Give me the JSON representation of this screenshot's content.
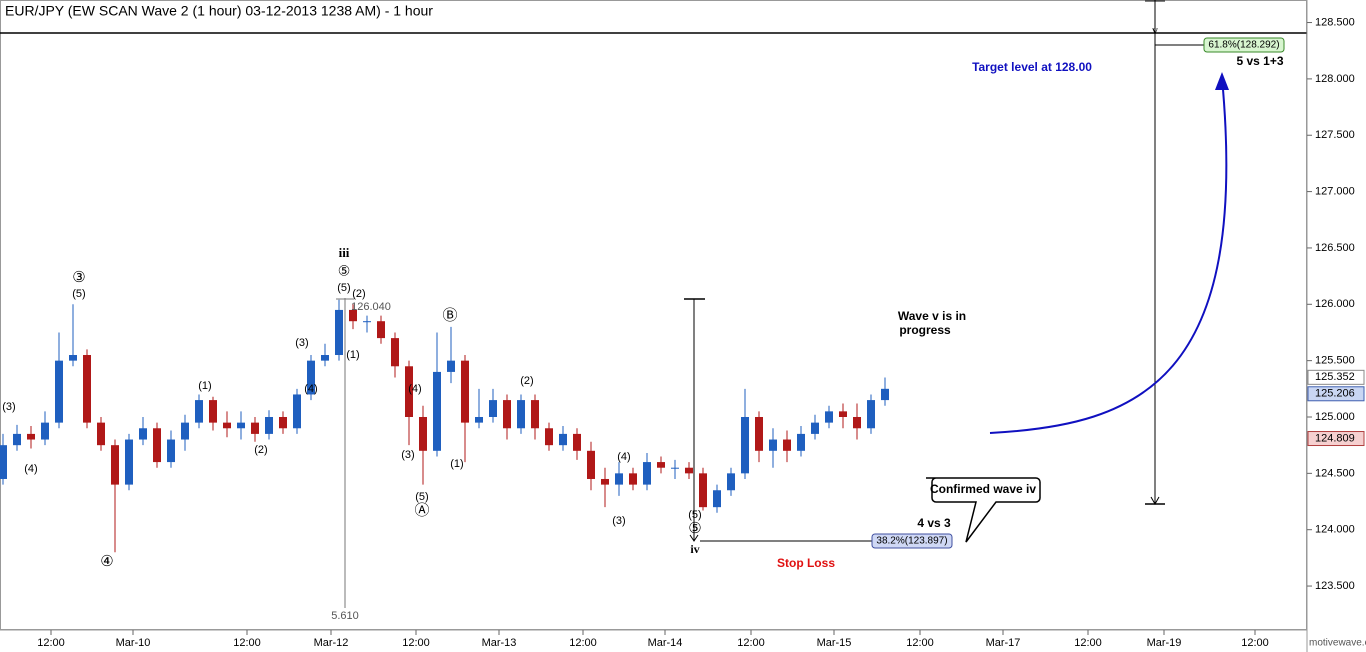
{
  "chart_data": {
    "type": "candlestick",
    "title": "EUR/JPY (EW SCAN Wave 2 (1 hour) 03-12-2013 1238 AM) - 1 hour",
    "up_color": "#1f5fbf",
    "down_color": "#b01818",
    "open": [
      124.45,
      124.75,
      124.85,
      124.8,
      124.95,
      125.5,
      125.55,
      124.95,
      124.75,
      124.4,
      124.8,
      124.9,
      124.6,
      124.8,
      124.95,
      125.15,
      124.95,
      124.9,
      124.95,
      124.85,
      125.0,
      124.9,
      125.2,
      125.5,
      125.55,
      125.95,
      125.85,
      125.85,
      125.7,
      125.45,
      125.0,
      124.7,
      125.4,
      125.5,
      124.95,
      125.0,
      125.15,
      124.9,
      125.15,
      124.9,
      124.75,
      124.85,
      124.7,
      124.45,
      124.4,
      124.5,
      124.4,
      124.6,
      124.55,
      124.55,
      124.5,
      124.2,
      124.35,
      124.5,
      125.0,
      124.7,
      124.8,
      124.7,
      124.85,
      124.95,
      125.05,
      125.0,
      124.9,
      125.15
    ],
    "high": [
      124.85,
      124.93,
      124.92,
      125.05,
      125.75,
      126.0,
      125.6,
      125.0,
      124.8,
      124.85,
      125.0,
      124.95,
      124.88,
      125.02,
      125.2,
      125.18,
      125.05,
      125.05,
      125.0,
      125.06,
      125.05,
      125.25,
      125.55,
      125.65,
      126.04,
      126.0,
      125.9,
      125.9,
      125.75,
      125.5,
      125.1,
      125.75,
      125.8,
      125.55,
      125.25,
      125.25,
      125.2,
      125.2,
      125.2,
      124.95,
      124.92,
      124.9,
      124.78,
      124.55,
      124.6,
      124.55,
      124.68,
      124.65,
      124.62,
      124.6,
      124.55,
      124.4,
      124.55,
      125.25,
      125.05,
      124.9,
      124.88,
      124.92,
      125.02,
      125.1,
      125.12,
      125.12,
      125.2,
      125.35
    ],
    "low": [
      124.4,
      124.7,
      124.72,
      124.75,
      124.9,
      125.45,
      124.9,
      124.7,
      123.8,
      124.35,
      124.75,
      124.55,
      124.55,
      124.7,
      124.9,
      124.88,
      124.82,
      124.8,
      124.78,
      124.8,
      124.85,
      124.85,
      125.15,
      125.45,
      125.5,
      125.78,
      125.75,
      125.65,
      125.35,
      124.75,
      124.4,
      124.65,
      125.3,
      124.6,
      124.9,
      124.95,
      124.8,
      124.85,
      124.8,
      124.7,
      124.7,
      124.62,
      124.35,
      124.2,
      124.3,
      124.35,
      124.35,
      124.5,
      124.45,
      124.45,
      124.17,
      124.15,
      124.3,
      124.45,
      124.6,
      124.55,
      124.6,
      124.65,
      124.8,
      124.9,
      124.9,
      124.8,
      124.85,
      125.1
    ],
    "close": [
      124.75,
      124.85,
      124.8,
      124.95,
      125.5,
      125.55,
      124.95,
      124.75,
      124.4,
      124.8,
      124.9,
      124.6,
      124.8,
      124.95,
      125.15,
      124.95,
      124.9,
      124.95,
      124.85,
      125.0,
      124.9,
      125.2,
      125.5,
      125.55,
      125.95,
      125.85,
      125.85,
      125.7,
      125.45,
      125.0,
      124.7,
      125.4,
      125.5,
      124.95,
      125.0,
      125.15,
      124.9,
      125.15,
      124.9,
      124.75,
      124.85,
      124.7,
      124.45,
      124.4,
      124.5,
      124.4,
      124.6,
      124.55,
      124.55,
      124.5,
      124.2,
      124.35,
      124.5,
      125.0,
      124.7,
      124.8,
      124.7,
      124.85,
      124.95,
      125.05,
      125.0,
      124.9,
      125.15,
      125.25
    ],
    "ylim": [
      123.11,
      128.7
    ],
    "yticks": [
      {
        "value": 123.5,
        "label": "123.500"
      },
      {
        "value": 124.0,
        "label": "124.000"
      },
      {
        "value": 124.5,
        "label": "124.500"
      },
      {
        "value": 125.0,
        "label": "125.000"
      },
      {
        "value": 125.5,
        "label": "125.500"
      },
      {
        "value": 126.0,
        "label": "126.000"
      },
      {
        "value": 126.5,
        "label": "126.500"
      },
      {
        "value": 127.0,
        "label": "127.000"
      },
      {
        "value": 127.5,
        "label": "127.500"
      },
      {
        "value": 128.0,
        "label": "128.000"
      },
      {
        "value": 128.5,
        "label": "128.500"
      }
    ],
    "xtick_labels": [
      "12:00",
      "Mar-10",
      "12:00",
      "Mar-12",
      "12:00",
      "Mar-13",
      "12:00",
      "Mar-14",
      "12:00",
      "Mar-15",
      "12:00",
      "Mar-17",
      "12:00",
      "Mar-19",
      "12:00"
    ],
    "price_labels": [
      {
        "value": 125.352,
        "label": "125.352"
      },
      {
        "value": 125.206,
        "label": "125.206"
      },
      {
        "value": 124.809,
        "label": "124.809"
      }
    ],
    "annotations": [
      "(3)",
      "(4)",
      "③",
      "(5)",
      "④",
      "(1)",
      "(2)",
      "(3)",
      "(4)",
      "iii",
      "⑤",
      "(5)",
      "(2)",
      "126.040",
      "(1)",
      "(4)",
      "(3)",
      "(5)",
      "Ⓐ",
      "Ⓑ",
      "(1)",
      "(2)",
      "(4)",
      "(3)",
      "(5)",
      "⑤",
      "iv",
      "5.610",
      "Wave v is in",
      "progress",
      "Target level at 128.00",
      "61.8%(128.292)",
      "5 vs 1+3",
      "38.2%(123.897)",
      "4 vs 3",
      "Stop Loss",
      "Confirmed wave iv",
      "v"
    ],
    "watermark": "motivewave.com"
  }
}
